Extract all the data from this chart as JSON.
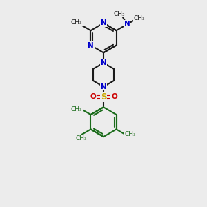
{
  "bg_color": "#ececec",
  "bond_color": "#1a1a1a",
  "n_color": "#0000cc",
  "s_color": "#ccaa00",
  "o_color": "#cc0000",
  "c_color": "#1a6b1a",
  "line_width": 1.5,
  "double_sep": 0.055,
  "figsize": [
    3.0,
    3.0
  ],
  "dpi": 100,
  "xlim": [
    0,
    10
  ],
  "ylim": [
    0,
    10
  ],
  "font_size_atom": 7.5,
  "font_size_methyl": 6.5
}
